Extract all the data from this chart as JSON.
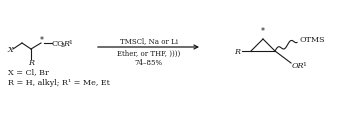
{
  "bg_color": "#ffffff",
  "fig_width": 3.62,
  "fig_height": 1.16,
  "dpi": 100,
  "text_color": "#1a1a1a",
  "line_color": "#1a1a1a",
  "font_size": 5.8,
  "sub_font": 4.5,
  "arrow_reagents_line1": "TMSCl, Na or Li",
  "arrow_reagents_line2": "Ether, or THF, ))))",
  "arrow_yield": "74–85%",
  "legend_line1": "X = Cl, Br",
  "legend_line2": "R = H, alkyl; R¹ = Me, Et"
}
